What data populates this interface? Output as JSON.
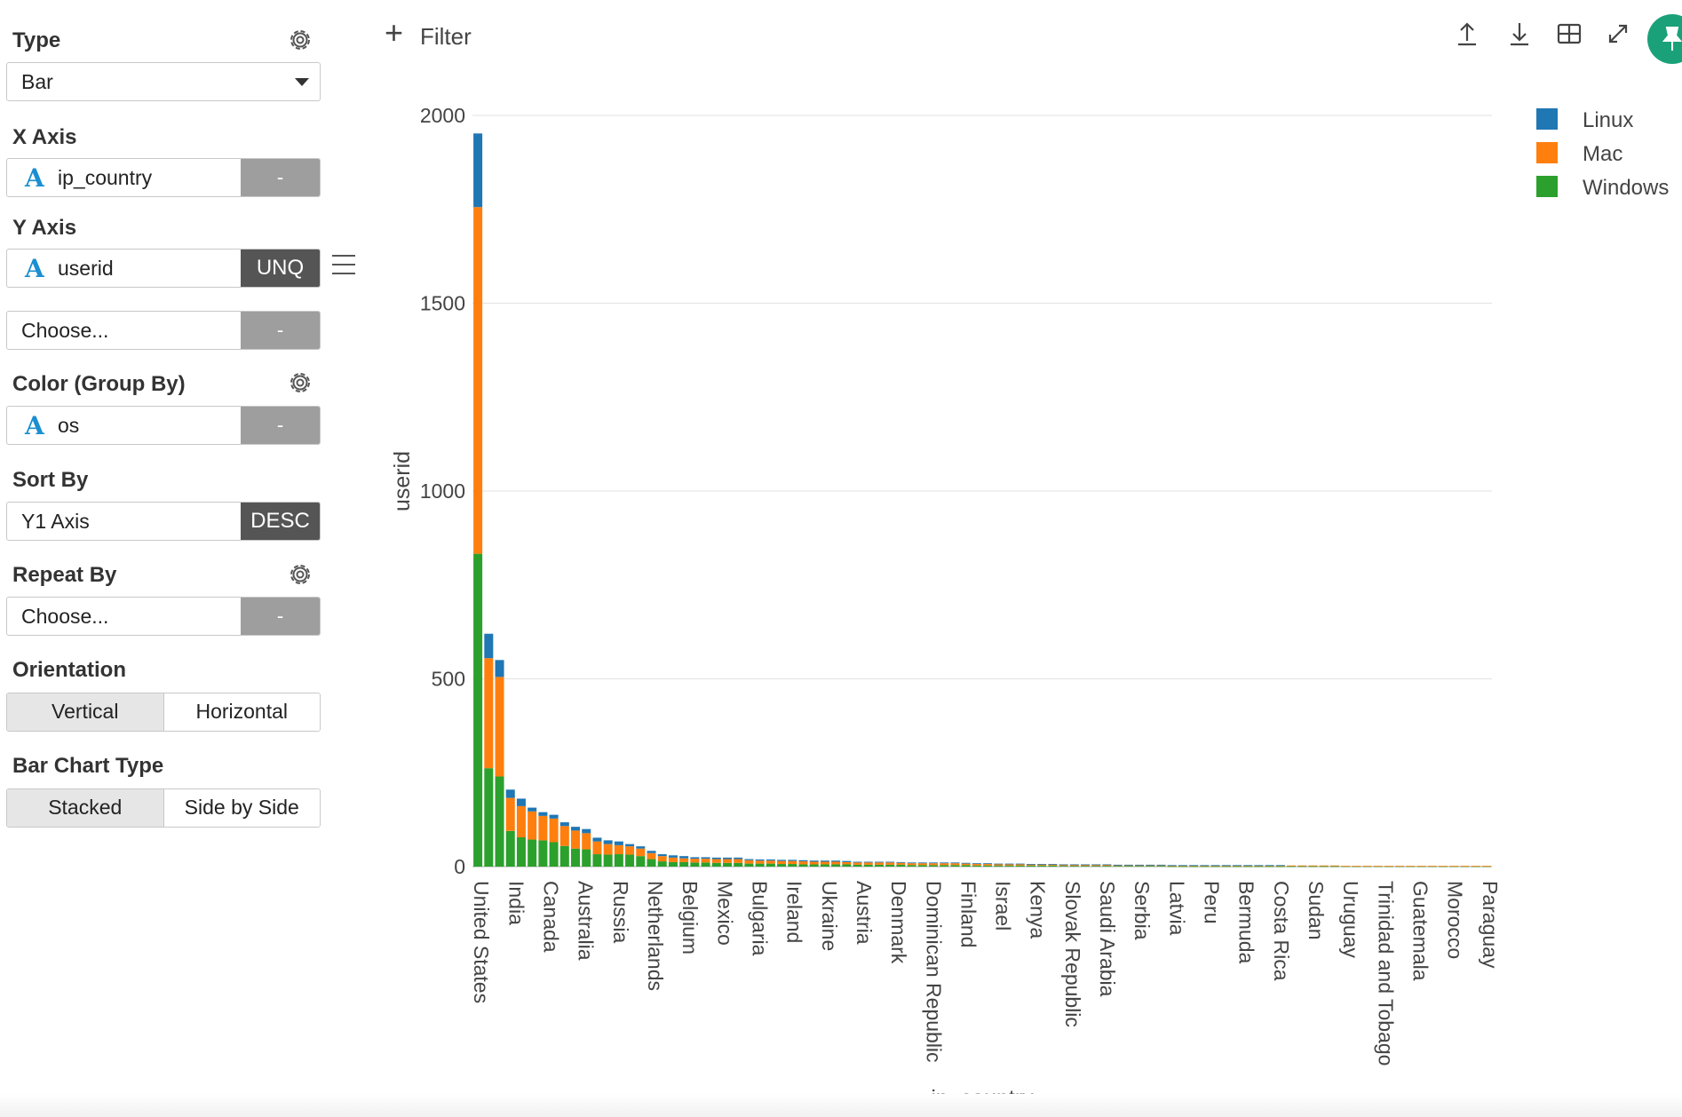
{
  "panel": {
    "type": {
      "title": "Type",
      "value": "Bar"
    },
    "x_axis": {
      "title": "X Axis",
      "field": "ip_country",
      "type_icon": "A",
      "button": "-"
    },
    "y_axis": {
      "title": "Y Axis",
      "field": "userid",
      "type_icon": "A",
      "button": "UNQ"
    },
    "y_axis_2": {
      "placeholder": "Choose...",
      "button": "-"
    },
    "color": {
      "title": "Color (Group By)",
      "field": "os",
      "type_icon": "A",
      "button": "-"
    },
    "sort": {
      "title": "Sort By",
      "value": "Y1 Axis",
      "button": "DESC"
    },
    "repeat": {
      "title": "Repeat By",
      "placeholder": "Choose...",
      "button": "-"
    },
    "orientation": {
      "title": "Orientation",
      "options": [
        "Vertical",
        "Horizontal"
      ],
      "selected": "Vertical"
    },
    "bar_type": {
      "title": "Bar Chart Type",
      "options": [
        "Stacked",
        "Side by Side"
      ],
      "selected": "Stacked"
    }
  },
  "toolbar": {
    "filter_label": "Filter",
    "icons": [
      "upload-icon",
      "download-icon",
      "grid-icon",
      "expand-icon",
      "pin-icon"
    ],
    "pin_color": "#1aa179"
  },
  "chart_data": {
    "type": "bar",
    "stacked": true,
    "orientation": "vertical",
    "xlabel": "ip_country",
    "ylabel": "userid",
    "ylim": [
      0,
      2000
    ],
    "yticks": [
      0,
      500,
      1000,
      1500,
      2000
    ],
    "grid": true,
    "legend_position": "top-right",
    "xtick_labels": [
      "United States",
      "India",
      "Canada",
      "Australia",
      "Russia",
      "Netherlands",
      "Belgium",
      "Mexico",
      "Bulgaria",
      "Ireland",
      "Ukraine",
      "Austria",
      "Denmark",
      "Dominican Republic",
      "Finland",
      "Israel",
      "Kenya",
      "Slovak Republic",
      "Saudi Arabia",
      "Serbia",
      "Latvia",
      "Peru",
      "Bermuda",
      "Costa Rica",
      "Sudan",
      "Uruguay",
      "Trinidad and Tobago",
      "Guatemala",
      "Morocco",
      "Paraguay"
    ],
    "bar_count": 94,
    "series": [
      {
        "name": "Windows",
        "color": "#2ca02c",
        "values": [
          833,
          262,
          240,
          95,
          78,
          72,
          70,
          65,
          55,
          48,
          46,
          33,
          32,
          33,
          32,
          28,
          20,
          14,
          12,
          12,
          11,
          11,
          10,
          10,
          10,
          8,
          8,
          8,
          7,
          7,
          6,
          6,
          6,
          6,
          6,
          5,
          5,
          5,
          5,
          5,
          4,
          4,
          4,
          4,
          4,
          4,
          3,
          3,
          3,
          3,
          3,
          3,
          3,
          3,
          2,
          2,
          2,
          2,
          2,
          2,
          2,
          2,
          2,
          2,
          1,
          1,
          1,
          1,
          1,
          1,
          1,
          1,
          1,
          1,
          1,
          1,
          1,
          1,
          1,
          1,
          1,
          1,
          1,
          1,
          1,
          1,
          1,
          1,
          1,
          1,
          1,
          1,
          1,
          1
        ]
      },
      {
        "name": "Mac",
        "color": "#ff7f0e",
        "values": [
          923,
          293,
          265,
          88,
          83,
          75,
          65,
          63,
          53,
          48,
          43,
          34,
          28,
          24,
          22,
          20,
          16,
          14,
          12,
          10,
          10,
          10,
          10,
          10,
          10,
          9,
          8,
          8,
          8,
          8,
          8,
          7,
          7,
          7,
          6,
          6,
          6,
          6,
          6,
          5,
          5,
          5,
          5,
          5,
          5,
          4,
          4,
          4,
          4,
          4,
          4,
          3,
          3,
          3,
          3,
          3,
          3,
          3,
          3,
          2,
          2,
          2,
          2,
          2,
          2,
          2,
          2,
          2,
          2,
          2,
          2,
          2,
          2,
          2,
          2,
          2,
          2,
          2,
          2,
          2,
          1,
          1,
          1,
          1,
          1,
          1,
          1,
          1,
          1,
          1,
          1,
          1,
          1,
          1
        ]
      },
      {
        "name": "Linux",
        "color": "#1f77b4",
        "values": [
          196,
          65,
          45,
          22,
          20,
          10,
          10,
          10,
          10,
          10,
          11,
          10,
          10,
          10,
          6,
          6,
          6,
          5,
          6,
          6,
          4,
          4,
          4,
          4,
          4,
          3,
          3,
          3,
          3,
          3,
          3,
          3,
          3,
          3,
          3,
          2,
          2,
          2,
          2,
          2,
          2,
          2,
          2,
          2,
          2,
          2,
          2,
          2,
          1,
          1,
          1,
          1,
          1,
          1,
          1,
          1,
          1,
          1,
          1,
          1,
          1,
          1,
          1,
          1,
          1,
          1,
          1,
          1,
          1,
          1,
          1,
          1,
          1,
          1,
          1,
          0,
          0,
          0,
          0,
          0,
          0,
          0,
          0,
          0,
          0,
          0,
          0,
          0,
          0,
          0,
          0,
          0,
          0,
          0
        ]
      }
    ]
  }
}
